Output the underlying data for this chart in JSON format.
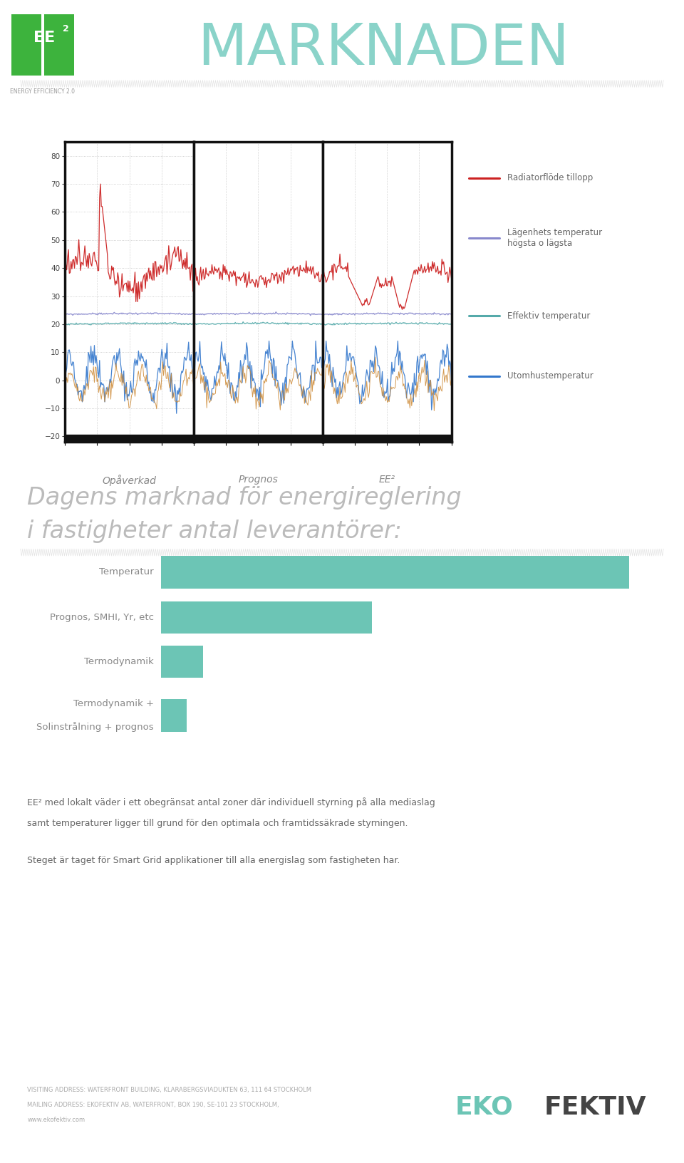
{
  "title": "MARKNADEN",
  "title_color": "#7dcfc4",
  "bg_color": "#ffffff",
  "decorative_line_color": "#cccccc",
  "section_heading_line1": "Dagens marknad för energireglering",
  "section_heading_line2": "i fastigheter antal leverantörer:",
  "heading_color": "#aaaaaa",
  "bar_categories": [
    "Temperatur",
    "Prognos, SMHI, Yr, etc",
    "Termodynamik",
    "Termodynamik +\nSolinstrålning + prognos"
  ],
  "bar_values": [
    10,
    4.5,
    0.9,
    0.55
  ],
  "bar_color": "#6cc5b5",
  "bar_label_color": "#999999",
  "legend_items": [
    {
      "label": "Radiatorflöde tillopp",
      "color": "#cc2222"
    },
    {
      "label": "Lägenhets temperatur\nhögsta o lägsta",
      "color": "#8888cc"
    },
    {
      "label": "Effektiv temperatur",
      "color": "#55aaaa"
    },
    {
      "label": "Utomhustemperatur",
      "color": "#3377cc"
    }
  ],
  "panel_labels": [
    "Opåverkad",
    "Prognos",
    "EE²"
  ],
  "y_min": -22,
  "y_max": 85,
  "footer_line1": "VISITING ADDRESS: WATERFRONT BUILDING, KLARABERGSVIADUKTEN 63, 111 64 STOCKHOLM",
  "footer_line2": "MAILING ADDRESS: EKOFEKTIV AB, WATERFRONT, BOX 190, SE-101 23 STOCKHOLM,",
  "footer_line3": "www.ekofektiv.com",
  "footer_color": "#aaaaaa",
  "body_text1": "EE² med lokalt väder i ett obegränsat antal zoner där individuell styrning på alla mediaslag",
  "body_text2": "samt temperaturer ligger till grund för den optimala och framtidssäkrade styrningen.",
  "body_text3": "Steget är taget för Smart Grid applikationer till alla energislag som fastigheten har.",
  "ekofektiv_eco": "EKO",
  "ekofektiv_fektiv": "FEKTIV",
  "ekofektiv_color_eco": "#6cc5b5",
  "ekofektiv_color_fektiv": "#444444"
}
